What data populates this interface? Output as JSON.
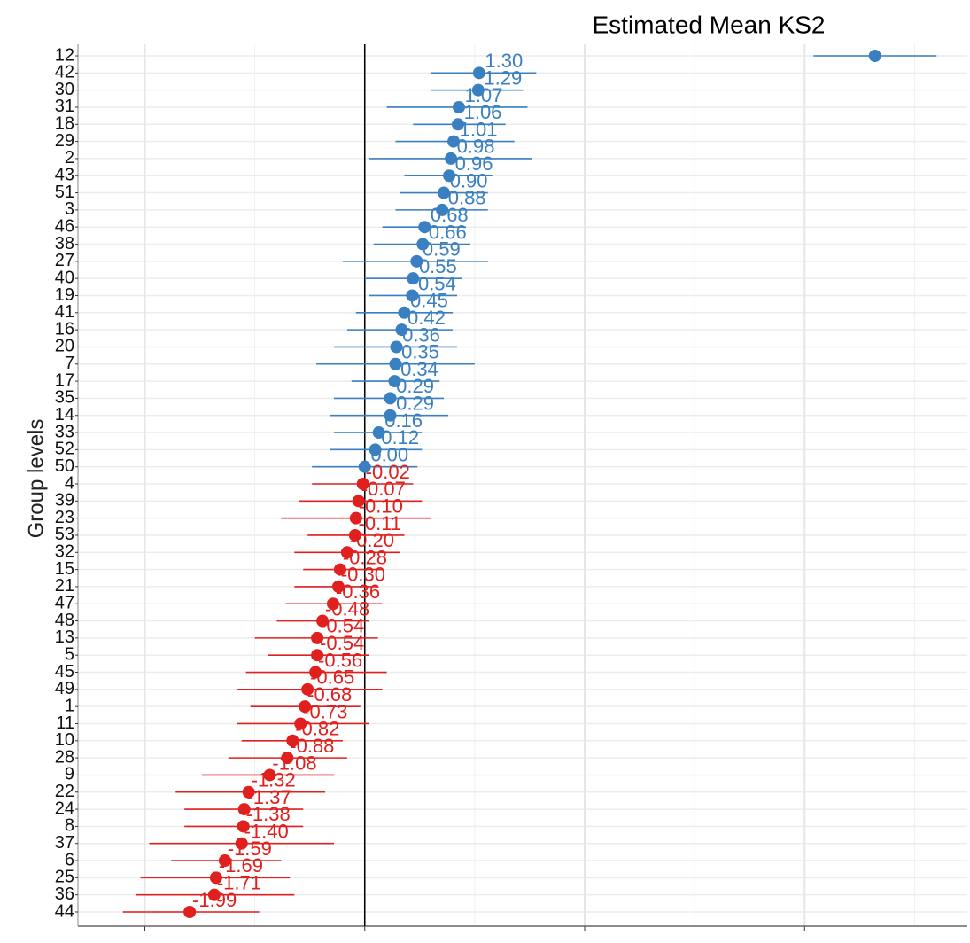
{
  "chart_data": {
    "type": "forest",
    "title": "Estimated Mean KS2",
    "y_label": "Group levels",
    "categories": [
      "12",
      "42",
      "30",
      "31",
      "18",
      "29",
      "2",
      "43",
      "51",
      "3",
      "46",
      "38",
      "27",
      "40",
      "19",
      "41",
      "16",
      "20",
      "7",
      "17",
      "35",
      "14",
      "33",
      "52",
      "50",
      "4",
      "39",
      "23",
      "53",
      "32",
      "15",
      "21",
      "47",
      "48",
      "13",
      "5",
      "45",
      "49",
      "1",
      "11",
      "10",
      "28",
      "9",
      "22",
      "24",
      "8",
      "37",
      "6",
      "25",
      "36",
      "44"
    ],
    "values": [
      5.8,
      1.3,
      1.29,
      1.07,
      1.06,
      1.01,
      0.98,
      0.96,
      0.9,
      0.88,
      0.68,
      0.66,
      0.59,
      0.55,
      0.54,
      0.45,
      0.42,
      0.36,
      0.35,
      0.34,
      0.29,
      0.29,
      0.16,
      0.12,
      0,
      -0.02,
      -0.07,
      -0.1,
      -0.11,
      -0.2,
      -0.28,
      -0.3,
      -0.36,
      -0.48,
      -0.54,
      -0.54,
      -0.56,
      -0.65,
      -0.68,
      -0.73,
      -0.82,
      -0.88,
      -1.08,
      -1.32,
      -1.37,
      -1.38,
      -1.4,
      -1.59,
      -1.69,
      -1.71,
      -1.99
    ],
    "value_labels": [
      null,
      "1.30",
      "1.29",
      "1.07",
      "1.06",
      "1.01",
      "0.98",
      "0.96",
      "0.90",
      "0.88",
      "0.68",
      "0.66",
      "0.59",
      "0.55",
      "0.54",
      "0.45",
      "0.42",
      "0.36",
      "0.35",
      "0.34",
      "0.29",
      "0.29",
      "0.16",
      "0.12",
      "0.00",
      "-0.02",
      "-0.07",
      "-0.10",
      "-0.11",
      "-0.20",
      "-0.28",
      "-0.30",
      "-0.36",
      "-0.48",
      "-0.54",
      "-0.54",
      "-0.56",
      "-0.65",
      "-0.68",
      "-0.73",
      "-0.82",
      "-0.88",
      "-1.08",
      "-1.32",
      "-1.37",
      "-1.38",
      "-1.40",
      "-1.59",
      "-1.69",
      "-1.71",
      "-1.99"
    ],
    "ci_low": [
      5.1,
      0.75,
      0.75,
      0.25,
      0.55,
      0.35,
      0.05,
      0.45,
      0.4,
      0.35,
      0.2,
      0.1,
      -0.25,
      0,
      0.05,
      -0.1,
      -0.2,
      -0.35,
      -0.55,
      -0.15,
      -0.35,
      -0.4,
      -0.35,
      -0.4,
      -0.6,
      -0.6,
      -0.75,
      -0.95,
      -0.65,
      -0.8,
      -0.7,
      -0.8,
      -0.9,
      -1,
      -1.25,
      -1.1,
      -1.35,
      -1.45,
      -1.3,
      -1.45,
      -1.4,
      -1.55,
      -1.85,
      -2.15,
      -2.05,
      -2.05,
      -2.45,
      -2.2,
      -2.55,
      -2.6,
      -2.75
    ],
    "ci_high": [
      6.5,
      1.95,
      1.8,
      1.85,
      1.6,
      1.7,
      1.9,
      1.45,
      1.4,
      1.4,
      1.15,
      1.2,
      1.4,
      1.1,
      1.05,
      1,
      1,
      1.05,
      1.25,
      0.85,
      0.9,
      0.95,
      0.65,
      0.65,
      0.6,
      0.55,
      0.65,
      0.75,
      0.45,
      0.4,
      0.2,
      0.15,
      0.2,
      0.05,
      0.15,
      0.05,
      0.25,
      0.2,
      -0.05,
      0.05,
      -0.25,
      -0.2,
      -0.35,
      -0.45,
      -0.7,
      -0.7,
      -0.35,
      -0.95,
      -0.85,
      -0.8,
      -1.2
    ],
    "pos_color": "#3a7fbf",
    "neg_color": "#e0201e",
    "xlim": [
      -3.26,
      6.85
    ],
    "xticks": [
      -2.5,
      {
        "value": 0,
        "label": "0.0"
      },
      2.5,
      {
        "value": 5,
        "label": "5.0"
      }
    ],
    "xminor": [
      -1.25,
      1.25,
      3.75,
      6.25
    ],
    "ref_line": 0,
    "grid": true
  }
}
